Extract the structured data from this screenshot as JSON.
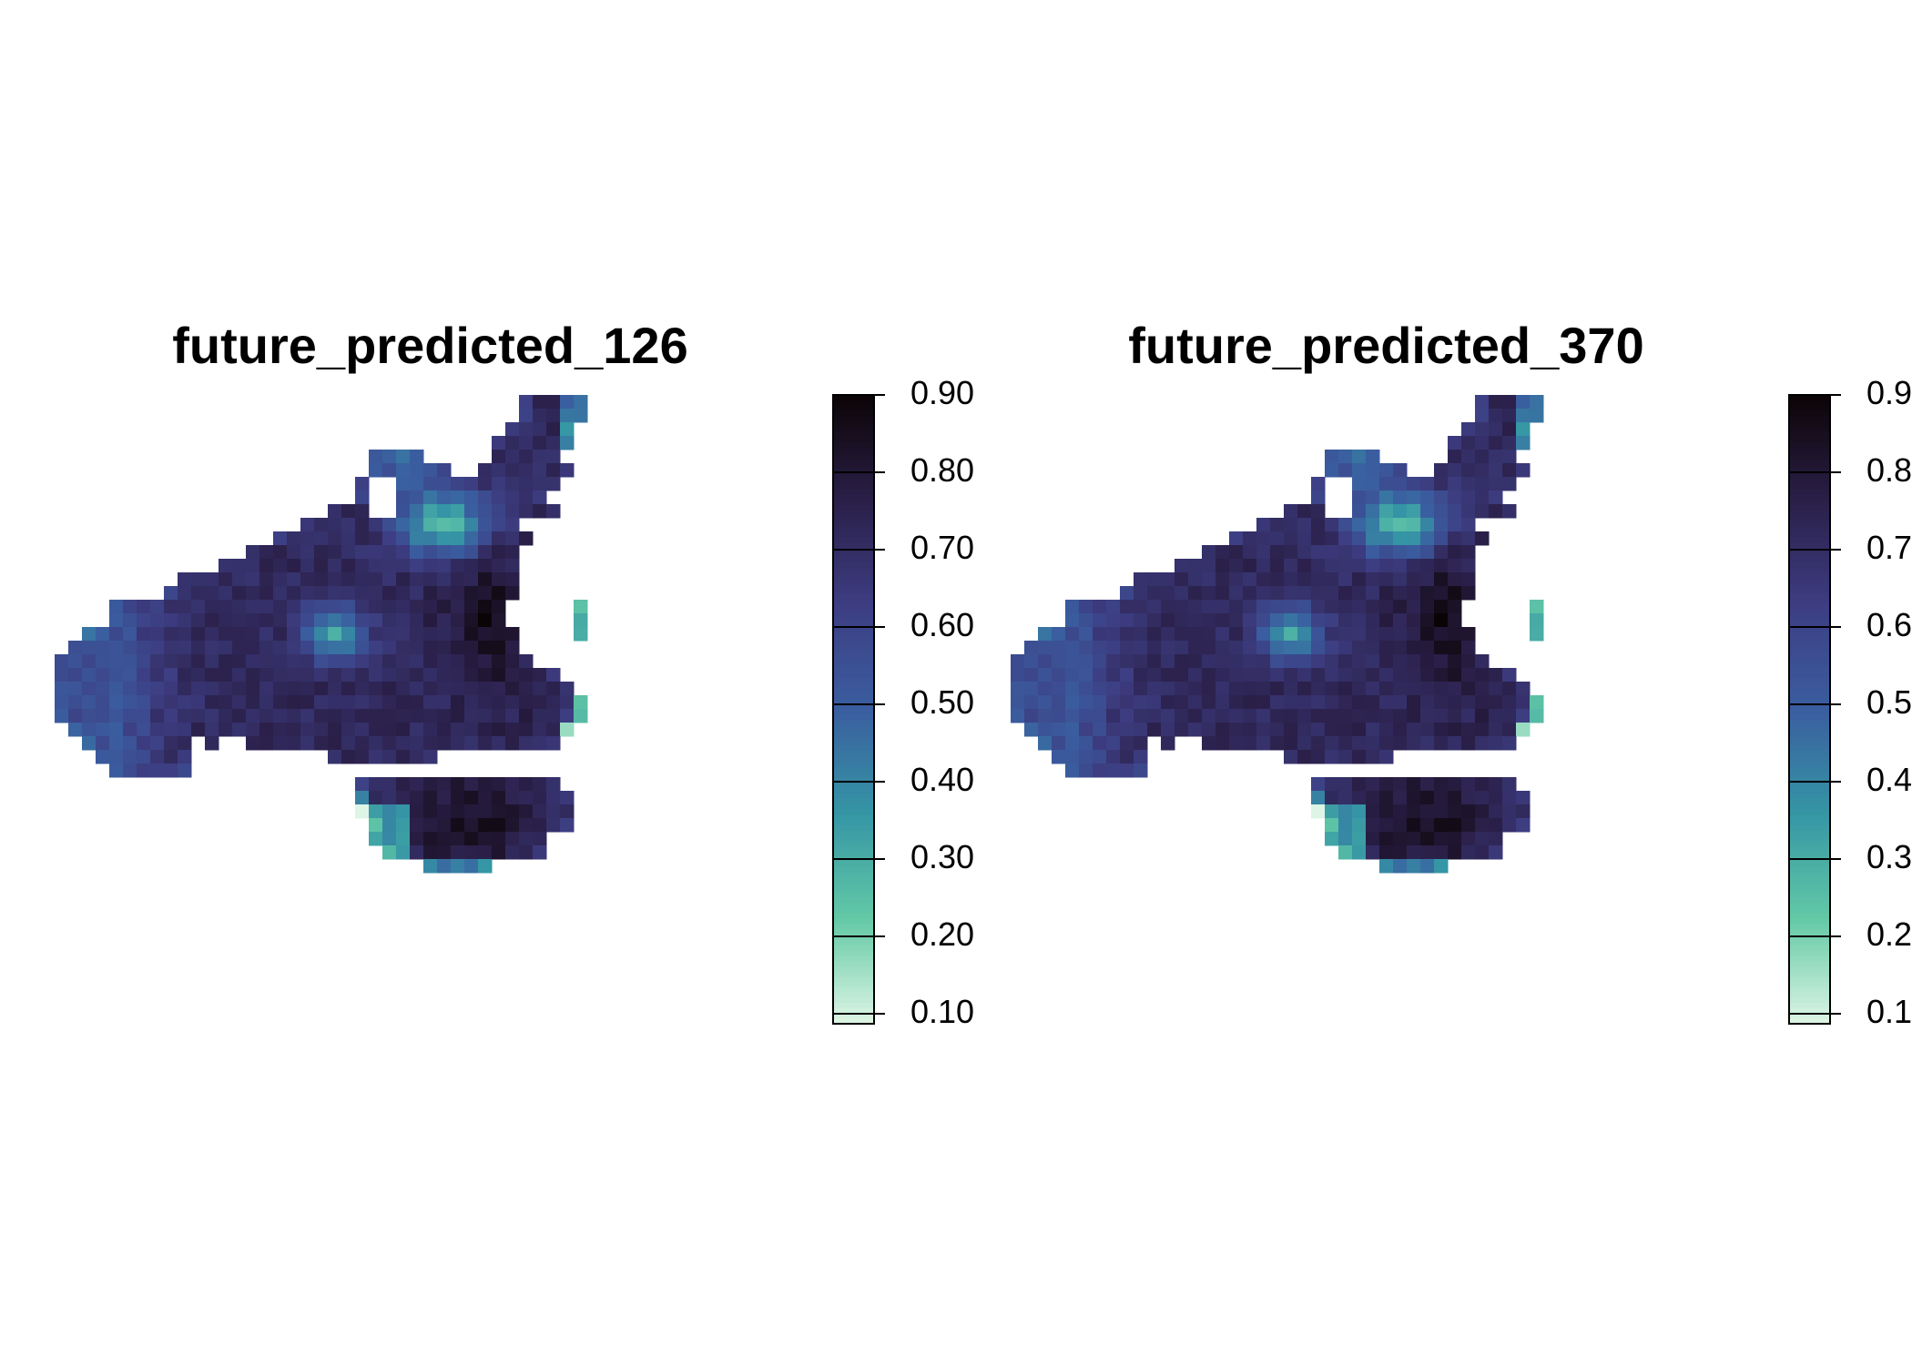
{
  "panels": [
    {
      "title": "future_predicted_126",
      "legend": {
        "ticks": [
          "0.90",
          "0.80",
          "0.70",
          "0.60",
          "0.50",
          "0.40",
          "0.30",
          "0.20",
          "0.10"
        ]
      }
    },
    {
      "title": "future_predicted_370",
      "legend": {
        "ticks": [
          "0.90",
          "0.80",
          "0.70",
          "0.60",
          "0.50",
          "0.40",
          "0.30",
          "0.20",
          "0.10"
        ]
      }
    }
  ],
  "color_scale": {
    "min": 0.1,
    "max": 0.9,
    "stops": [
      "#def5e5",
      "#63c9a6",
      "#3596a5",
      "#3a5ea0",
      "#3d3d82",
      "#2a1f48",
      "#0b0405"
    ]
  }
}
